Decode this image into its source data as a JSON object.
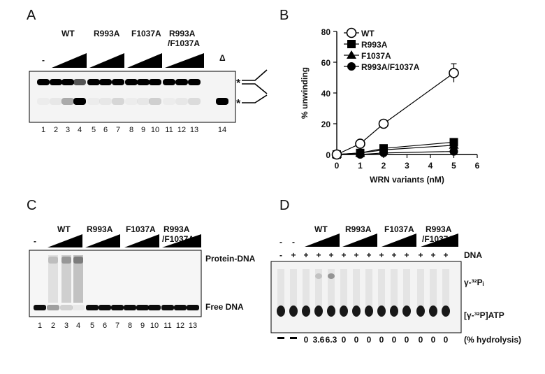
{
  "panelA": {
    "letter": "A",
    "minus": "-",
    "groups": [
      "WT",
      "R993A",
      "F1037A",
      "R993A",
      "/F1037A"
    ],
    "delta": "Δ",
    "lanes": [
      "1",
      "2",
      "3",
      "4",
      "5",
      "6",
      "7",
      "8",
      "9",
      "10",
      "11",
      "12",
      "13",
      "14"
    ],
    "star_top": "*",
    "star_bottom": "*"
  },
  "panelB": {
    "letter": "B",
    "chart_data": {
      "type": "line",
      "xlabel": "WRN variants (nM)",
      "ylabel": "% unwinding",
      "xlim": [
        0,
        6
      ],
      "ylim": [
        0,
        80
      ],
      "xticks": [
        "0",
        "1",
        "2",
        "3",
        "4",
        "5",
        "6"
      ],
      "yticks": [
        "0",
        "20",
        "40",
        "60",
        "80"
      ],
      "legend_position": "top-right",
      "series": [
        {
          "name": "WT",
          "marker": "open-circle",
          "x": [
            0,
            1,
            2,
            5
          ],
          "y": [
            0,
            7,
            20,
            53
          ],
          "err": [
            0,
            0,
            0,
            6
          ]
        },
        {
          "name": "R993A",
          "marker": "square",
          "x": [
            0,
            1,
            2,
            5
          ],
          "y": [
            0,
            1,
            4,
            8
          ]
        },
        {
          "name": "F1037A",
          "marker": "triangle",
          "x": [
            0,
            1,
            2,
            5
          ],
          "y": [
            0,
            1,
            3,
            6
          ]
        },
        {
          "name": "R993A/F1037A",
          "marker": "filled-circle",
          "x": [
            0,
            1,
            2,
            5
          ],
          "y": [
            0,
            0,
            1,
            2
          ]
        }
      ]
    }
  },
  "panelC": {
    "letter": "C",
    "minus": "-",
    "groups": [
      "WT",
      "R993A",
      "F1037A",
      "R993A",
      "/F1037A"
    ],
    "protein_dna": "Protein-DNA",
    "free_dna": "Free DNA",
    "lanes": [
      "1",
      "2",
      "3",
      "4",
      "5",
      "6",
      "7",
      "8",
      "9",
      "10",
      "11",
      "12",
      "13"
    ]
  },
  "panelD": {
    "letter": "D",
    "groups": [
      "WT",
      "R993A",
      "F1037A",
      "R993A",
      "/F1037A"
    ],
    "dna_label": "DNA",
    "dna_signs": [
      "-",
      "+",
      "+",
      "+",
      "+",
      "+",
      "+",
      "+",
      "+",
      "+",
      "+",
      "+",
      "+",
      "+"
    ],
    "protein_signs": [
      "-",
      "-"
    ],
    "pi_label": "γ-³²Pᵢ",
    "atp_label": "[γ-³²P]ATP",
    "hydrolysis_values": [
      "-",
      "-",
      "0",
      "3.6",
      "6.3",
      "0",
      "0",
      "0",
      "0",
      "0",
      "0",
      "0",
      "0",
      "0"
    ],
    "hydrolysis_label": "(% hydrolysis)"
  }
}
